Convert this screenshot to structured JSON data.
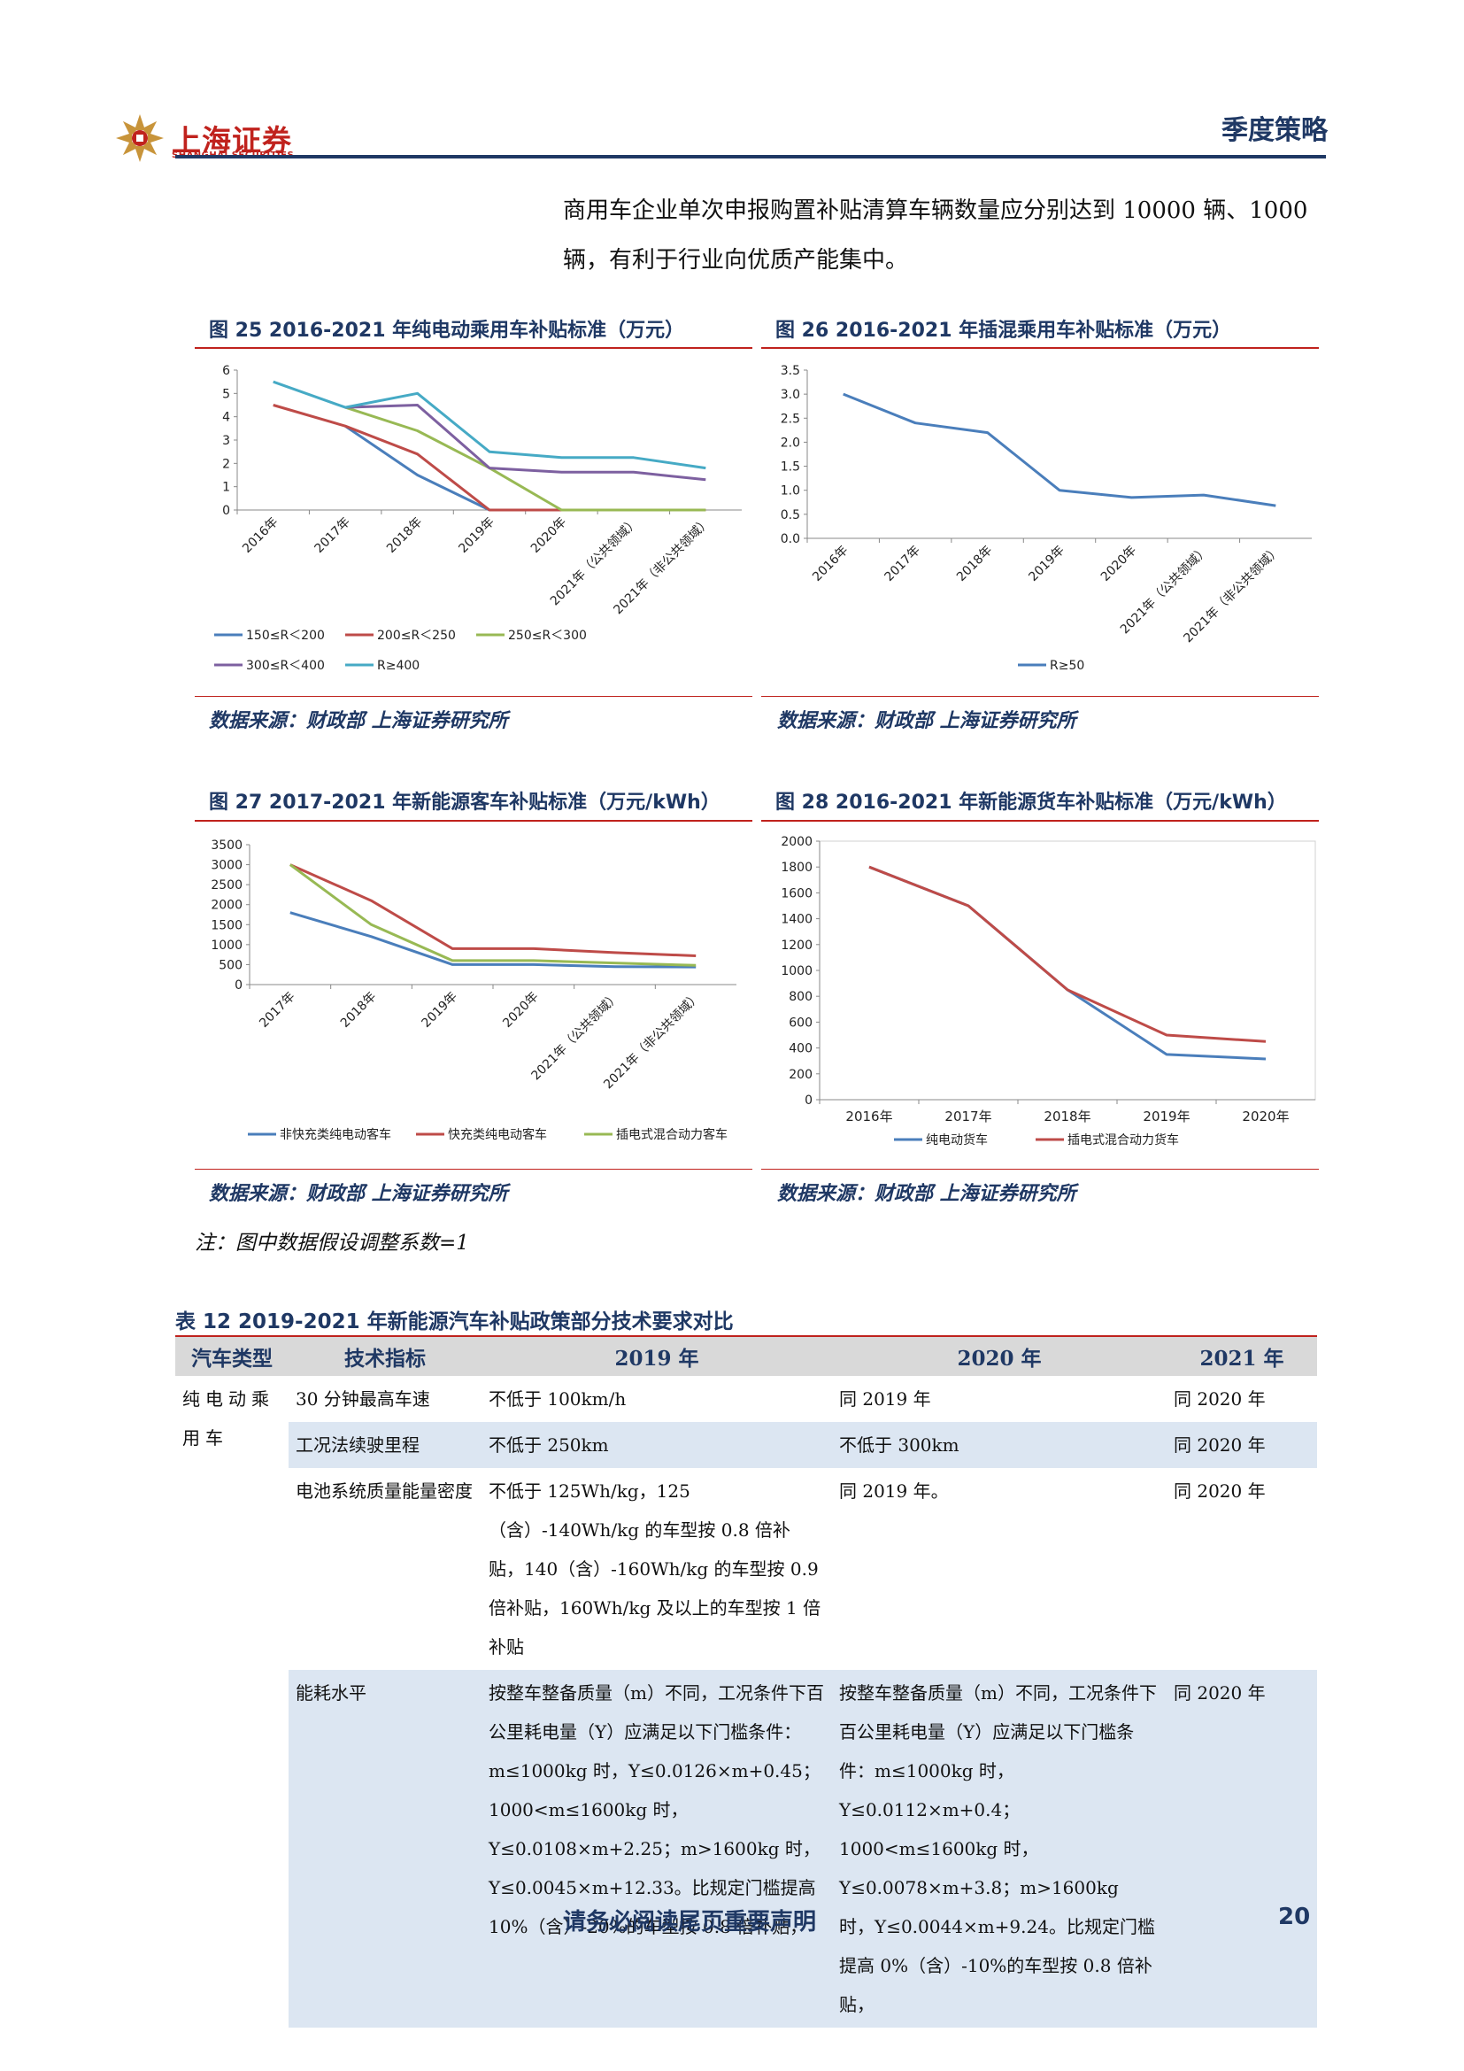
{
  "header": {
    "logo_cn": "上海证券",
    "logo_en": "SHANGHAI SECURITIES",
    "section": "季度策略"
  },
  "intro_paragraph": "商用车企业单次申报购置补贴清算车辆数量应分别达到 10000 辆、1000 辆，有利于行业向优质产能集中。",
  "figures": {
    "fig25": {
      "title": "图 25 2016-2021 年纯电动乘用车补贴标准（万元）",
      "source": "数据来源：财政部 上海证券研究所"
    },
    "fig26": {
      "title": "图 26 2016-2021 年插混乘用车补贴标准（万元）",
      "source": "数据来源：财政部 上海证券研究所"
    },
    "fig27": {
      "title": "图 27 2017-2021 年新能源客车补贴标准（万元/kWh）",
      "source": "数据来源：财政部 上海证券研究所"
    },
    "fig28": {
      "title": "图 28 2016-2021 年新能源货车补贴标准（万元/kWh）",
      "source": "数据来源：财政部 上海证券研究所"
    }
  },
  "chart_data": [
    {
      "type": "line",
      "categories": [
        "2016年",
        "2017年",
        "2018年",
        "2019年",
        "2020年",
        "2021年（公共领域）",
        "2021年（非公共领域）"
      ],
      "ylim": [
        0,
        6
      ],
      "yticks": [
        "0",
        "1",
        "2",
        "3",
        "4",
        "5",
        "6"
      ],
      "legend_position": "bottom",
      "series": [
        {
          "name": "150≤R＜200",
          "color": "#4a7ebb",
          "values": [
            null,
            3.6,
            1.5,
            0,
            null,
            null,
            null
          ]
        },
        {
          "name": "200≤R＜250",
          "color": "#be4b48",
          "values": [
            4.5,
            3.6,
            2.4,
            0,
            0,
            0,
            0
          ]
        },
        {
          "name": "250≤R＜300",
          "color": "#98b954",
          "values": [
            null,
            4.4,
            3.4,
            1.8,
            0,
            0,
            0
          ]
        },
        {
          "name": "300≤R＜400",
          "color": "#7d60a0",
          "values": [
            null,
            4.4,
            4.5,
            1.8,
            1.62,
            1.62,
            1.3
          ]
        },
        {
          "name": "R≥400",
          "color": "#46aac5",
          "values": [
            5.5,
            4.4,
            5.0,
            2.5,
            2.25,
            2.25,
            1.8
          ]
        }
      ]
    },
    {
      "type": "line",
      "categories": [
        "2016年",
        "2017年",
        "2018年",
        "2019年",
        "2020年",
        "2021年（公共领域）",
        "2021年（非公共领域）"
      ],
      "ylim": [
        0,
        3.5
      ],
      "yticks": [
        "0.0",
        "0.5",
        "1.0",
        "1.5",
        "2.0",
        "2.5",
        "3.0",
        "3.5"
      ],
      "legend_position": "bottom",
      "series": [
        {
          "name": "R≥50",
          "color": "#4a7ebb",
          "values": [
            3.0,
            2.4,
            2.2,
            1.0,
            0.85,
            0.9,
            0.68
          ]
        }
      ]
    },
    {
      "type": "line",
      "categories": [
        "2017年",
        "2018年",
        "2019年",
        "2020年",
        "2021年（公共领域）",
        "2021年（非公共领域）"
      ],
      "ylim": [
        0,
        3500
      ],
      "yticks": [
        "0",
        "500",
        "1000",
        "1500",
        "2000",
        "2500",
        "3000",
        "3500"
      ],
      "legend_position": "bottom",
      "series": [
        {
          "name": "非快充类纯电动客车",
          "color": "#4a7ebb",
          "values": [
            1800,
            1200,
            500,
            500,
            450,
            440
          ]
        },
        {
          "name": "快充类纯电动客车",
          "color": "#be4b48",
          "values": [
            3000,
            2100,
            900,
            900,
            800,
            720
          ]
        },
        {
          "name": "插电式混合动力客车",
          "color": "#98b954",
          "values": [
            3000,
            1500,
            600,
            600,
            540,
            480
          ]
        }
      ]
    },
    {
      "type": "line",
      "categories": [
        "2016年",
        "2017年",
        "2018年",
        "2019年",
        "2020年"
      ],
      "ylim": [
        0,
        2000
      ],
      "yticks": [
        "0",
        "200",
        "400",
        "600",
        "800",
        "1000",
        "1200",
        "1400",
        "1600",
        "1800",
        "2000"
      ],
      "legend_position": "bottom",
      "series": [
        {
          "name": "纯电动货车",
          "color": "#4a7ebb",
          "values": [
            1800,
            1500,
            850,
            350,
            315
          ]
        },
        {
          "name": "插电式混合动力货车",
          "color": "#be4b48",
          "values": [
            1800,
            1500,
            850,
            500,
            450
          ]
        }
      ]
    }
  ],
  "note": "注：图中数据假设调整系数=1",
  "table": {
    "title": "表 12 2019-2021 年新能源汽车补贴政策部分技术要求对比",
    "headers": [
      "汽车类型",
      "技术指标",
      "2019 年",
      "2020 年",
      "2021 年"
    ],
    "vehicle_type": "纯电动乘用车",
    "rows": [
      {
        "metric": "30 分钟最高车速",
        "y2019": "不低于 100km/h",
        "y2020": "同 2019 年",
        "y2021": "同 2020 年"
      },
      {
        "metric": "工况法续驶里程",
        "y2019": "不低于 250km",
        "y2020": "不低于 300km",
        "y2021": "同 2020 年"
      },
      {
        "metric": "电池系统质量能量密度",
        "y2019": "不低于 125Wh/kg，125（含）-140Wh/kg 的车型按 0.8 倍补贴，140（含）-160Wh/kg 的车型按 0.9 倍补贴，160Wh/kg 及以上的车型按 1 倍补贴",
        "y2020": "同 2019 年。",
        "y2021": "同 2020 年"
      },
      {
        "metric": "能耗水平",
        "y2019": "按整车整备质量（m）不同，工况条件下百公里耗电量（Y）应满足以下门槛条件：m≤1000kg 时，Y≤0.0126×m+0.45；1000<m≤1600kg 时，Y≤0.0108×m+2.25；m>1600kg 时，Y≤0.0045×m+12.33。比规定门槛提高 10%（含）-20%的车型按 0.8 倍补贴，",
        "y2020": "按整车整备质量（m）不同，工况条件下百公里耗电量（Y）应满足以下门槛条件：m≤1000kg 时，Y≤0.0112×m+0.4；1000<m≤1600kg 时，Y≤0.0078×m+3.8；m>1600kg 时，Y≤0.0044×m+9.24。比规定门槛提高 0%（含）-10%的车型按 0.8 倍补贴，",
        "y2021": "同 2020 年"
      }
    ]
  },
  "footer": {
    "notice": "请务必阅读尾页重要声明",
    "page": "20"
  }
}
